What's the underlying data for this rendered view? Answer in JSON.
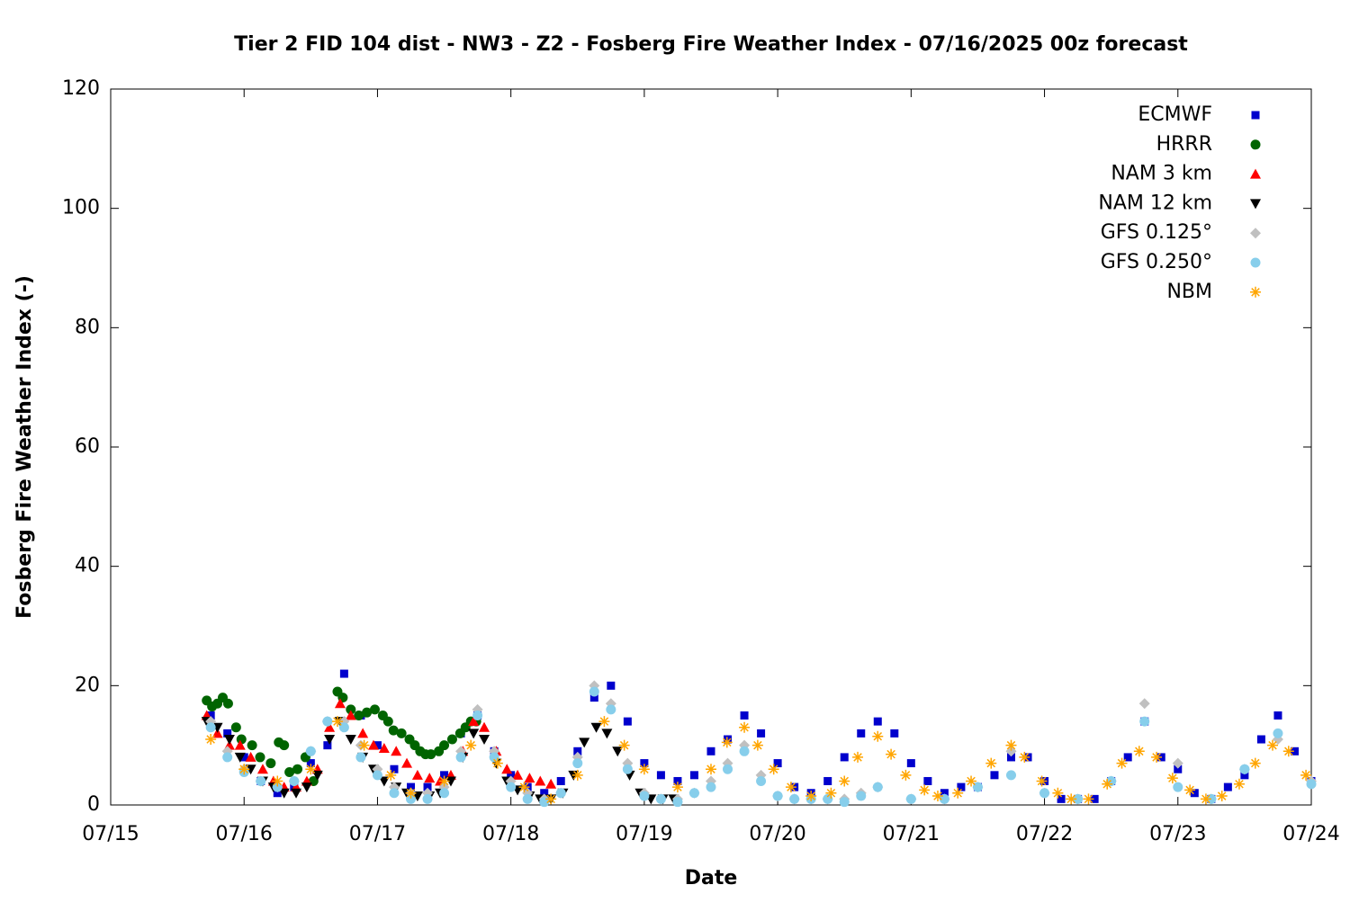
{
  "chart_data": {
    "type": "scatter",
    "title": "Tier 2 FID 104 dist - NW3 - Z2 - Fosberg Fire Weather Index - 07/16/2025 00z forecast",
    "xlabel": "Date",
    "ylabel": "Fosberg Fire Weather Index (-)",
    "xlim": [
      15,
      24
    ],
    "ylim": [
      0,
      120
    ],
    "xticks": [
      {
        "value": 15,
        "label": "07/15"
      },
      {
        "value": 16,
        "label": "07/16"
      },
      {
        "value": 17,
        "label": "07/17"
      },
      {
        "value": 18,
        "label": "07/18"
      },
      {
        "value": 19,
        "label": "07/19"
      },
      {
        "value": 20,
        "label": "07/20"
      },
      {
        "value": 21,
        "label": "07/21"
      },
      {
        "value": 22,
        "label": "07/22"
      },
      {
        "value": 23,
        "label": "07/23"
      },
      {
        "value": 24,
        "label": "07/24"
      }
    ],
    "yticks": [
      0,
      20,
      40,
      60,
      80,
      100,
      120
    ],
    "legend": "top-right",
    "series": [
      {
        "name": "ECMWF",
        "color": "#0000cd",
        "marker": "square",
        "x": [
          15.75,
          15.875,
          16,
          16.125,
          16.25,
          16.375,
          16.5,
          16.625,
          16.75,
          16.875,
          17,
          17.125,
          17.25,
          17.375,
          17.5,
          17.625,
          17.75,
          17.875,
          18,
          18.125,
          18.25,
          18.375,
          18.5,
          18.625,
          18.75,
          18.875,
          19,
          19.125,
          19.25,
          19.375,
          19.5,
          19.625,
          19.75,
          19.875,
          20,
          20.125,
          20.25,
          20.375,
          20.5,
          20.625,
          20.75,
          20.875,
          21,
          21.125,
          21.25,
          21.375,
          21.5,
          21.625,
          21.75,
          21.875,
          22,
          22.125,
          22.25,
          22.375,
          22.5,
          22.625,
          22.75,
          22.875,
          23,
          23.125,
          23.25,
          23.375,
          23.5,
          23.625,
          23.75,
          23.875,
          24
        ],
        "values": [
          15,
          12,
          8,
          4,
          2,
          3,
          7,
          10,
          22,
          15,
          10,
          6,
          3,
          3,
          5,
          12,
          15,
          9,
          5,
          3,
          2,
          4,
          9,
          18,
          20,
          14,
          7,
          5,
          4,
          5,
          9,
          11,
          15,
          12,
          7,
          3,
          2,
          4,
          8,
          12,
          14,
          12,
          7,
          4,
          2,
          3,
          3,
          5,
          8,
          8,
          4,
          1,
          1,
          1,
          4,
          8,
          14,
          8,
          6,
          2,
          1,
          3,
          5,
          11,
          15,
          9,
          4
        ]
      },
      {
        "name": "HRRR",
        "color": "#006400",
        "marker": "circle",
        "x": [
          15.72,
          15.76,
          15.8,
          15.84,
          15.88,
          15.94,
          15.98,
          16.06,
          16.12,
          16.2,
          16.26,
          16.3,
          16.34,
          16.4,
          16.46,
          16.52,
          16.7,
          16.74,
          16.8,
          16.86,
          16.92,
          16.98,
          17.04,
          17.08,
          17.12,
          17.18,
          17.24,
          17.28,
          17.32,
          17.36,
          17.4,
          17.46,
          17.5,
          17.56,
          17.62,
          17.66,
          17.7,
          17.74
        ],
        "values": [
          17.5,
          16.5,
          17,
          18,
          17,
          13,
          11,
          10,
          8,
          7,
          10.5,
          10,
          5.5,
          6,
          8,
          4,
          19,
          18,
          16,
          15,
          15.5,
          16,
          15,
          14,
          12.5,
          12,
          11,
          10,
          9,
          8.5,
          8.5,
          9,
          10,
          11,
          12,
          13,
          14,
          14
        ]
      },
      {
        "name": "NAM 3 km",
        "color": "#ff0000",
        "marker": "triangle-up",
        "x": [
          15.72,
          15.8,
          15.89,
          15.97,
          16.05,
          16.14,
          16.22,
          16.3,
          16.39,
          16.47,
          16.55,
          16.64,
          16.72,
          16.8,
          16.89,
          16.97,
          17.05,
          17.14,
          17.22,
          17.3,
          17.39,
          17.47,
          17.55,
          17.64,
          17.72,
          17.8,
          17.89,
          17.97,
          18.05,
          18.14,
          18.22,
          18.3
        ],
        "values": [
          15,
          12,
          10,
          10,
          8,
          6,
          4,
          3,
          3,
          4,
          6,
          13,
          17,
          15,
          12,
          10,
          9.5,
          9,
          7,
          5,
          4.5,
          4,
          5,
          9,
          14,
          13,
          9,
          6,
          5,
          4.5,
          4,
          3.5
        ]
      },
      {
        "name": "NAM 12 km",
        "color": "#000000",
        "marker": "triangle-down",
        "x": [
          15.72,
          15.8,
          15.89,
          15.97,
          16.05,
          16.14,
          16.22,
          16.3,
          16.39,
          16.47,
          16.55,
          16.64,
          16.72,
          16.8,
          16.89,
          16.97,
          17.05,
          17.14,
          17.22,
          17.3,
          17.39,
          17.47,
          17.55,
          17.64,
          17.72,
          17.8,
          17.89,
          17.97,
          18.05,
          18.14,
          18.22,
          18.3,
          18.39,
          18.47,
          18.55,
          18.64,
          18.72,
          18.8,
          18.89,
          18.97,
          19.05,
          19.14,
          19.22
        ],
        "values": [
          14,
          13,
          11,
          8,
          6,
          4,
          3,
          2,
          2,
          3,
          5,
          11,
          14,
          11,
          8,
          6,
          4,
          3,
          2,
          1.5,
          1.5,
          2,
          4,
          8,
          12,
          11,
          7,
          4,
          2.5,
          1.5,
          1,
          1,
          2,
          5,
          10.5,
          13,
          12,
          9,
          5,
          2,
          1,
          1,
          1
        ]
      },
      {
        "name": "GFS 0.125°",
        "color": "#c0c0c0",
        "marker": "diamond",
        "x": [
          15.75,
          15.875,
          16,
          16.125,
          16.25,
          16.375,
          16.5,
          16.625,
          16.75,
          16.875,
          17,
          17.125,
          17.25,
          17.375,
          17.5,
          17.625,
          17.75,
          17.875,
          18,
          18.125,
          18.25,
          18.375,
          18.5,
          18.625,
          18.75,
          18.875,
          19,
          19.125,
          19.25,
          19.375,
          19.5,
          19.625,
          19.75,
          19.875,
          20,
          20.125,
          20.25,
          20.375,
          20.5,
          20.625,
          20.75,
          21,
          21.25,
          21.5,
          21.75,
          22,
          22.25,
          22.5,
          22.75,
          23,
          23.25,
          23.5,
          23.75,
          24
        ],
        "values": [
          14,
          9,
          6,
          4,
          3,
          4,
          9,
          14,
          14,
          10,
          6,
          3,
          2,
          2,
          3,
          9,
          16,
          9,
          4,
          2,
          1,
          2,
          8,
          20,
          17,
          7,
          2,
          1,
          1,
          2,
          4,
          7,
          10,
          5,
          1.5,
          1,
          1,
          1,
          1,
          2,
          3,
          1,
          1,
          3,
          9,
          2,
          1,
          4,
          17,
          7,
          1,
          6,
          11,
          4
        ]
      },
      {
        "name": "GFS 0.250°",
        "color": "#87ceeb",
        "marker": "circle",
        "x": [
          15.75,
          15.875,
          16,
          16.125,
          16.25,
          16.375,
          16.5,
          16.625,
          16.75,
          16.875,
          17,
          17.125,
          17.25,
          17.375,
          17.5,
          17.625,
          17.75,
          17.875,
          18,
          18.125,
          18.25,
          18.375,
          18.5,
          18.625,
          18.75,
          18.875,
          19,
          19.125,
          19.25,
          19.375,
          19.5,
          19.625,
          19.75,
          19.875,
          20,
          20.125,
          20.25,
          20.375,
          20.5,
          20.625,
          20.75,
          21,
          21.25,
          21.5,
          21.75,
          22,
          22.25,
          22.5,
          22.75,
          23,
          23.25,
          23.5,
          23.75,
          24
        ],
        "values": [
          13,
          8,
          5.5,
          4,
          3,
          4,
          9,
          14,
          13,
          8,
          5,
          2,
          1,
          1,
          2,
          8,
          15,
          8,
          3,
          1,
          0.5,
          2,
          7,
          19,
          16,
          6,
          1.5,
          1,
          0.5,
          2,
          3,
          6,
          9,
          4,
          1.5,
          1,
          1,
          1,
          0.5,
          1.5,
          3,
          1,
          1,
          3,
          5,
          2,
          1,
          4,
          14,
          3,
          1,
          6,
          12,
          3.5
        ]
      },
      {
        "name": "NBM",
        "color": "#ffa500",
        "marker": "asterisk",
        "x": [
          15.75,
          16,
          16.25,
          16.5,
          16.7,
          16.9,
          17.1,
          17.25,
          17.5,
          17.7,
          17.9,
          18.1,
          18.3,
          18.5,
          18.7,
          18.85,
          19,
          19.25,
          19.5,
          19.62,
          19.75,
          19.85,
          19.97,
          20.1,
          20.25,
          20.4,
          20.5,
          20.6,
          20.75,
          20.85,
          20.96,
          21.1,
          21.2,
          21.35,
          21.45,
          21.6,
          21.75,
          21.85,
          21.98,
          22.1,
          22.2,
          22.33,
          22.47,
          22.58,
          22.71,
          22.84,
          22.96,
          23.09,
          23.21,
          23.33,
          23.46,
          23.58,
          23.71,
          23.83,
          23.96
        ],
        "values": [
          11,
          6,
          4,
          6,
          14,
          10,
          5,
          2,
          4,
          10,
          7,
          3,
          1,
          5,
          14,
          10,
          6,
          3,
          6,
          10.5,
          13,
          10,
          6,
          3,
          1.5,
          2,
          4,
          8,
          11.5,
          8.5,
          5,
          2.5,
          1.5,
          2,
          4,
          7,
          10,
          8,
          4,
          2,
          1,
          1,
          3.5,
          7,
          9,
          8,
          4.5,
          2.5,
          1,
          1.5,
          3.5,
          7,
          10,
          9,
          5
        ]
      }
    ]
  }
}
